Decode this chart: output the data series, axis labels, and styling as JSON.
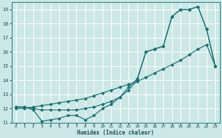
{
  "xlabel": "Humidex (Indice chaleur)",
  "bg_color": "#cce8e6",
  "grid_color": "#ffffff",
  "line_color": "#1a7070",
  "xlim": [
    -0.5,
    23.5
  ],
  "ylim": [
    11,
    19.5
  ],
  "xticks": [
    0,
    1,
    2,
    3,
    4,
    5,
    6,
    7,
    8,
    9,
    10,
    11,
    12,
    13,
    14,
    15,
    16,
    17,
    18,
    19,
    20,
    21,
    22,
    23
  ],
  "yticks": [
    11,
    12,
    13,
    14,
    15,
    16,
    17,
    18,
    19
  ],
  "curve1_x": [
    0,
    1,
    2,
    3,
    4,
    5,
    6,
    7,
    8,
    9,
    10,
    11,
    12,
    13,
    14,
    15,
    16,
    17,
    18,
    19,
    20,
    21,
    22,
    23
  ],
  "curve1_y": [
    12.1,
    12.1,
    12.0,
    11.9,
    11.9,
    11.9,
    11.9,
    11.9,
    12.0,
    12.1,
    12.3,
    12.5,
    12.8,
    13.3,
    14.0,
    16.0,
    16.2,
    16.4,
    18.5,
    19.0,
    19.0,
    19.2,
    17.6,
    15.0
  ],
  "curve2_x": [
    0,
    1,
    2,
    3,
    4,
    5,
    6,
    7,
    8,
    9,
    10,
    11,
    12,
    13,
    14,
    15,
    16,
    17,
    18,
    19,
    20,
    21,
    22,
    23
  ],
  "curve2_y": [
    12.0,
    12.0,
    12.1,
    12.2,
    12.3,
    12.4,
    12.5,
    12.6,
    12.7,
    12.9,
    13.1,
    13.3,
    13.5,
    13.7,
    13.9,
    14.2,
    14.5,
    14.8,
    15.1,
    15.4,
    15.8,
    16.2,
    16.5,
    15.0
  ],
  "curve3_x": [
    0,
    1,
    2,
    3,
    4,
    5,
    6,
    7,
    8,
    9,
    10,
    11,
    12,
    13,
    14,
    15,
    16,
    17,
    18,
    19,
    20,
    21,
    22,
    23
  ],
  "curve3_y": [
    12.1,
    12.1,
    11.9,
    11.1,
    11.2,
    11.3,
    11.5,
    11.5,
    11.2,
    11.5,
    12.0,
    12.3,
    12.8,
    13.5,
    14.1,
    16.0,
    16.2,
    16.4,
    18.5,
    19.0,
    19.0,
    19.2,
    17.6,
    15.0
  ]
}
